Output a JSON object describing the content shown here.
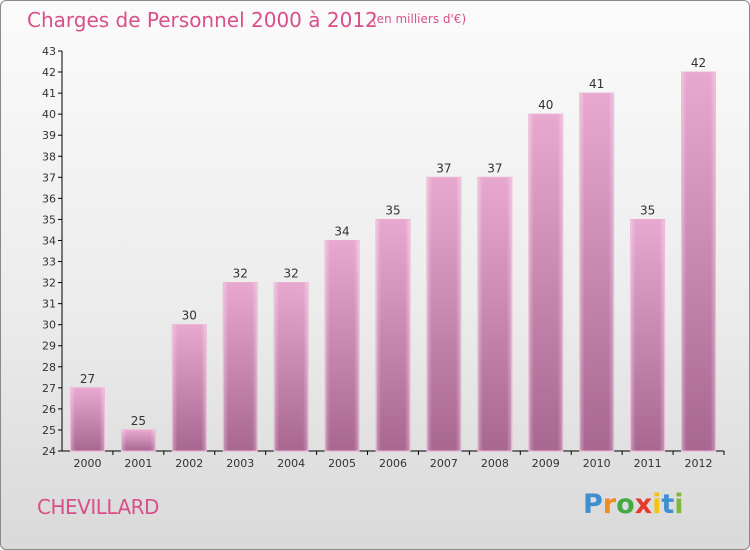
{
  "colors": {
    "title": "#d94f8a",
    "bar_top": "#e8a8cf",
    "bar_bottom": "#a86790",
    "axis": "#000000"
  },
  "header": {
    "title": "Charges de Personnel 2000 à 2012",
    "subtitle": "(en milliers d'€)"
  },
  "footer": {
    "commune": "CHEVILLARD",
    "logo": "Proxiti"
  },
  "chart_data": {
    "type": "bar",
    "title": "Charges de Personnel 2000 à 2012",
    "subtitle": "(en milliers d'€)",
    "categories": [
      "2000",
      "2001",
      "2002",
      "2003",
      "2004",
      "2005",
      "2006",
      "2007",
      "2008",
      "2009",
      "2010",
      "2011",
      "2012"
    ],
    "values": [
      27,
      25,
      30,
      32,
      32,
      34,
      35,
      37,
      37,
      40,
      41,
      35,
      42
    ],
    "ylim": [
      24,
      43
    ],
    "yticks": [
      24,
      25,
      26,
      27,
      28,
      29,
      30,
      31,
      32,
      33,
      34,
      35,
      36,
      37,
      38,
      39,
      40,
      41,
      42,
      43
    ],
    "grid": false,
    "legend": "none",
    "data_labels": true
  }
}
